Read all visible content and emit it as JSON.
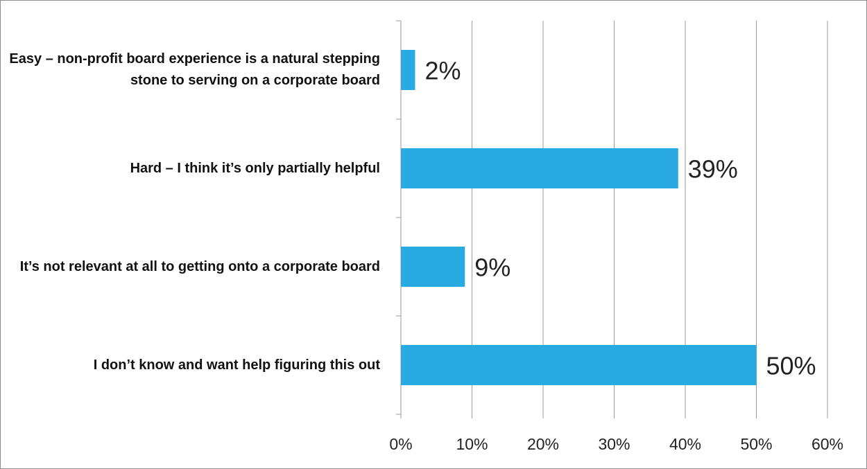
{
  "chart_data": {
    "type": "bar",
    "orientation": "horizontal",
    "categories": [
      "Easy – non-profit board experience is a natural stepping stone to serving on a corporate board",
      "Hard – I think it’s only partially helpful",
      "It’s not relevant at all to getting onto a corporate board",
      "I don’t know and want help figuring this out"
    ],
    "values": [
      2,
      39,
      9,
      50
    ],
    "value_labels": [
      "2%",
      "39%",
      "9%",
      "50%"
    ],
    "color": "#29abe2",
    "xlim": [
      0,
      60
    ],
    "xticks": [
      {
        "value": 0,
        "label": "0%"
      },
      {
        "value": 10,
        "label": "10%"
      },
      {
        "value": 20,
        "label": "20%"
      },
      {
        "value": 30,
        "label": "30%"
      },
      {
        "value": 40,
        "label": "40%"
      },
      {
        "value": 50,
        "label": "50%"
      },
      {
        "value": 60,
        "label": "60%"
      }
    ],
    "grid": true
  }
}
